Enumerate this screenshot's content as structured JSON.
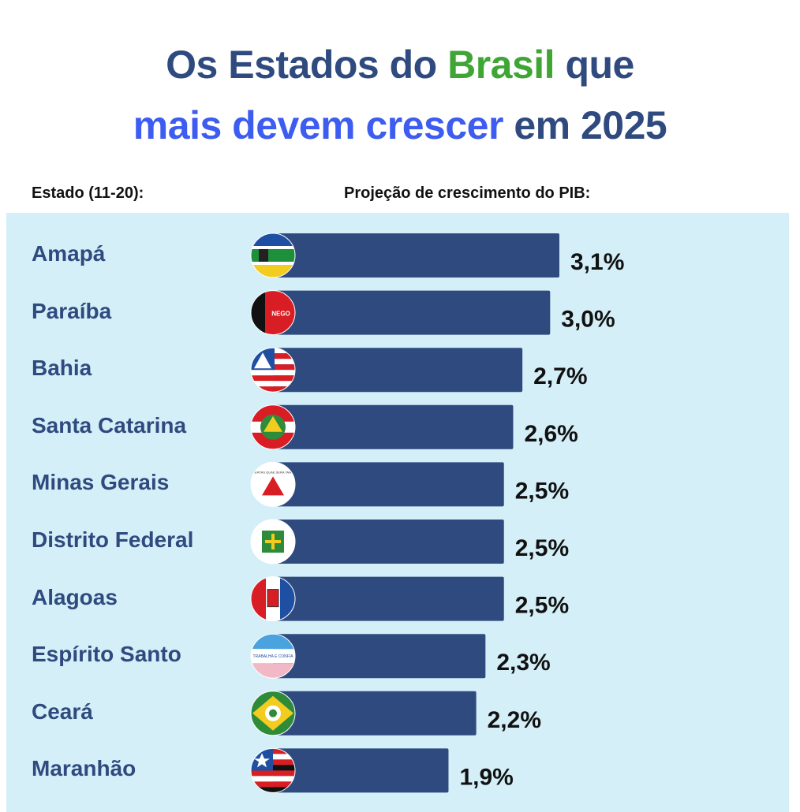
{
  "title": {
    "line1_a": "Os Estados do ",
    "line1_b": "Brasil",
    "line1_c": " que",
    "line2_a": "mais devem crescer",
    "line2_b": " em 2025"
  },
  "columns": {
    "state_header": "Estado (11-20):",
    "projection_header": "Projeção de crescimento do PIB:"
  },
  "colors": {
    "bar": "#2f4a7e",
    "panel": "#d4eff8",
    "title_dark": "#2f4a7e",
    "title_green": "#3fa535",
    "title_blue": "#3d5cf0"
  },
  "chart_data": {
    "type": "bar",
    "orientation": "horizontal",
    "categories": [
      "Amapá",
      "Paraíba",
      "Bahia",
      "Santa Catarina",
      "Minas Gerais",
      "Distrito Federal",
      "Alagoas",
      "Espírito Santo",
      "Ceará",
      "Maranhão"
    ],
    "values": [
      3.1,
      3.0,
      2.7,
      2.6,
      2.5,
      2.5,
      2.5,
      2.3,
      2.2,
      1.9
    ],
    "value_labels": [
      "3,1%",
      "3,0%",
      "2,7%",
      "2,6%",
      "2,5%",
      "2,5%",
      "2,5%",
      "2,3%",
      "2,2%",
      "1,9%"
    ],
    "flag_icons": [
      "amapa-flag-icon",
      "paraiba-flag-icon",
      "bahia-flag-icon",
      "santa-catarina-flag-icon",
      "minas-gerais-flag-icon",
      "distrito-federal-flag-icon",
      "alagoas-flag-icon",
      "espirito-santo-flag-icon",
      "ceara-flag-icon",
      "maranhao-flag-icon"
    ],
    "flag_texts": [
      "",
      "NEGO",
      "",
      "",
      "LIBERTAS QUAE SERA TAMEN",
      "",
      "",
      "TRABALHA E CONFIA",
      "",
      ""
    ],
    "unit": "%",
    "xlim": [
      0,
      3.1
    ]
  }
}
